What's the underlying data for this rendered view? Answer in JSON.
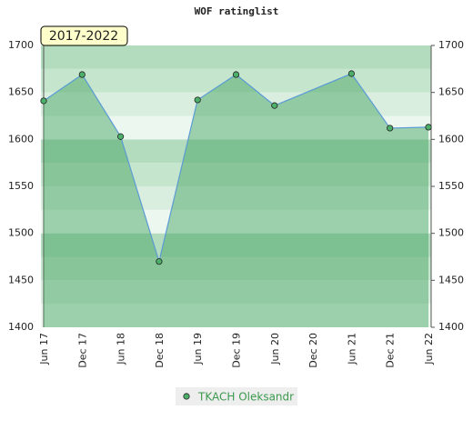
{
  "chart_data": {
    "type": "line",
    "title": "WOF ratinglist",
    "annotation": "2017-2022",
    "xlim": [
      0,
      10
    ],
    "xticks": [
      {
        "value": 0,
        "label": "Jun 17"
      },
      {
        "value": 1,
        "label": "Dec 17"
      },
      {
        "value": 2,
        "label": "Jun 18"
      },
      {
        "value": 3,
        "label": "Dec 18"
      },
      {
        "value": 4,
        "label": "Jun 19"
      },
      {
        "value": 5,
        "label": "Dec 19"
      },
      {
        "value": 6,
        "label": "Jun 20"
      },
      {
        "value": 7,
        "label": "Dec 20"
      },
      {
        "value": 8,
        "label": "Jun 21"
      },
      {
        "value": 9,
        "label": "Dec 21"
      },
      {
        "value": 10,
        "label": "Jun 22"
      }
    ],
    "ylim": [
      1400,
      1700
    ],
    "yticks": [
      1400,
      1450,
      1500,
      1550,
      1600,
      1650,
      1700
    ],
    "series": [
      {
        "name": "TKACH Oleksandr",
        "color": "#5b9bd5",
        "x": [
          0,
          1,
          2,
          3,
          4,
          5,
          6,
          8,
          9,
          10
        ],
        "values": [
          1641,
          1669,
          1603,
          1470,
          1642,
          1669,
          1636,
          1670,
          1612,
          1613
        ]
      }
    ]
  }
}
